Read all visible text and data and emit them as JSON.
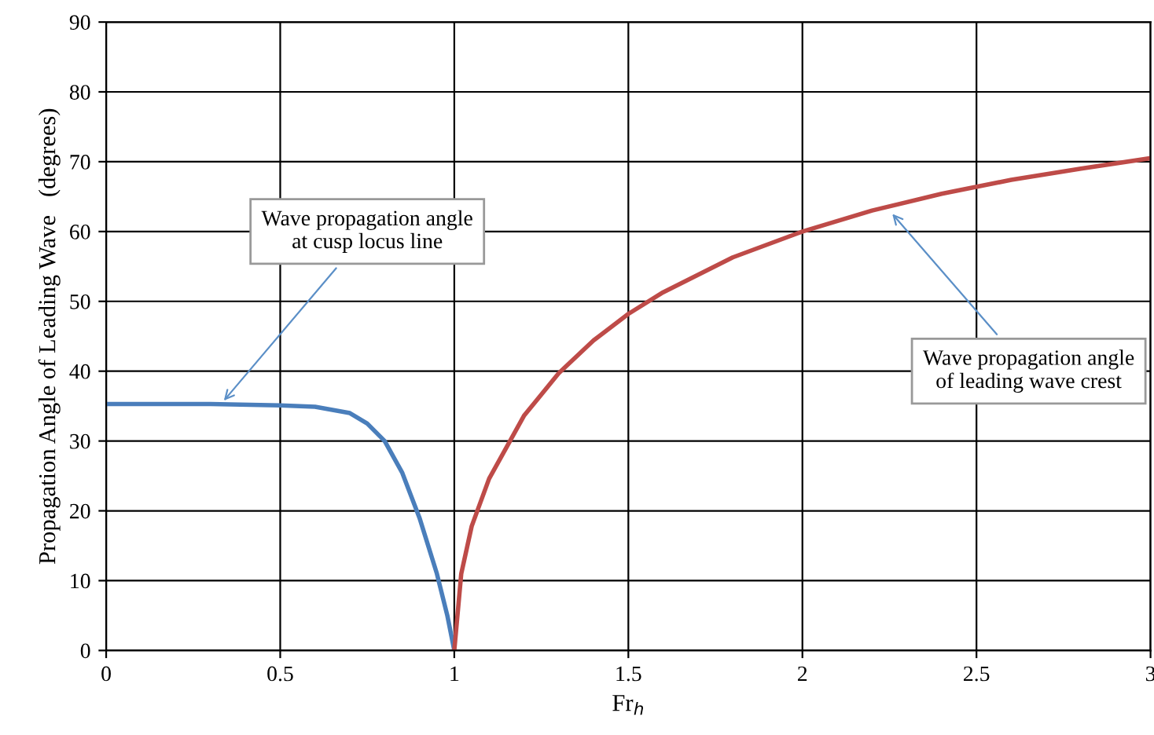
{
  "chart_data": {
    "type": "line",
    "xlabel": "Fr$_{h}$",
    "ylabel": "Propagation Angle of Leading Wave   (degrees)",
    "xlim": [
      0,
      3
    ],
    "xticks": [
      0,
      0.5,
      1,
      1.5,
      2,
      2.5,
      3
    ],
    "ylim": [
      0,
      90
    ],
    "yticks": [
      0,
      10,
      20,
      30,
      40,
      50,
      60,
      70,
      80,
      90
    ],
    "grid": true,
    "marker": "none",
    "line_style": "solid",
    "series": [
      {
        "color": "#4a7ebb",
        "x": [
          0,
          0.3,
          0.5,
          0.6,
          0.7,
          0.75,
          0.8,
          0.85,
          0.9,
          0.95,
          0.98,
          1
        ],
        "values": [
          35.3,
          35.3,
          35.1,
          34.9,
          34,
          32.5,
          30,
          25.5,
          19,
          11,
          5,
          0
        ]
      },
      {
        "color": "#be4b48",
        "x": [
          1,
          1.02,
          1.05,
          1.1,
          1.2,
          1.3,
          1.4,
          1.5,
          1.6,
          1.8,
          2,
          2.2,
          2.4,
          2.6,
          2.8,
          3
        ],
        "values": [
          0,
          11,
          17.8,
          24.6,
          33.6,
          39.7,
          44.4,
          48.2,
          51.3,
          56.3,
          60,
          63,
          65.4,
          67.4,
          69,
          70.5
        ]
      }
    ],
    "annotations": [
      {
        "text": "Wave propagation angle\nat cusp locus line",
        "x": 0.33,
        "y": 35.3
      },
      {
        "text": "Wave propagation angle\nof leading wave crest",
        "x": 2.25,
        "y": 63
      }
    ]
  }
}
